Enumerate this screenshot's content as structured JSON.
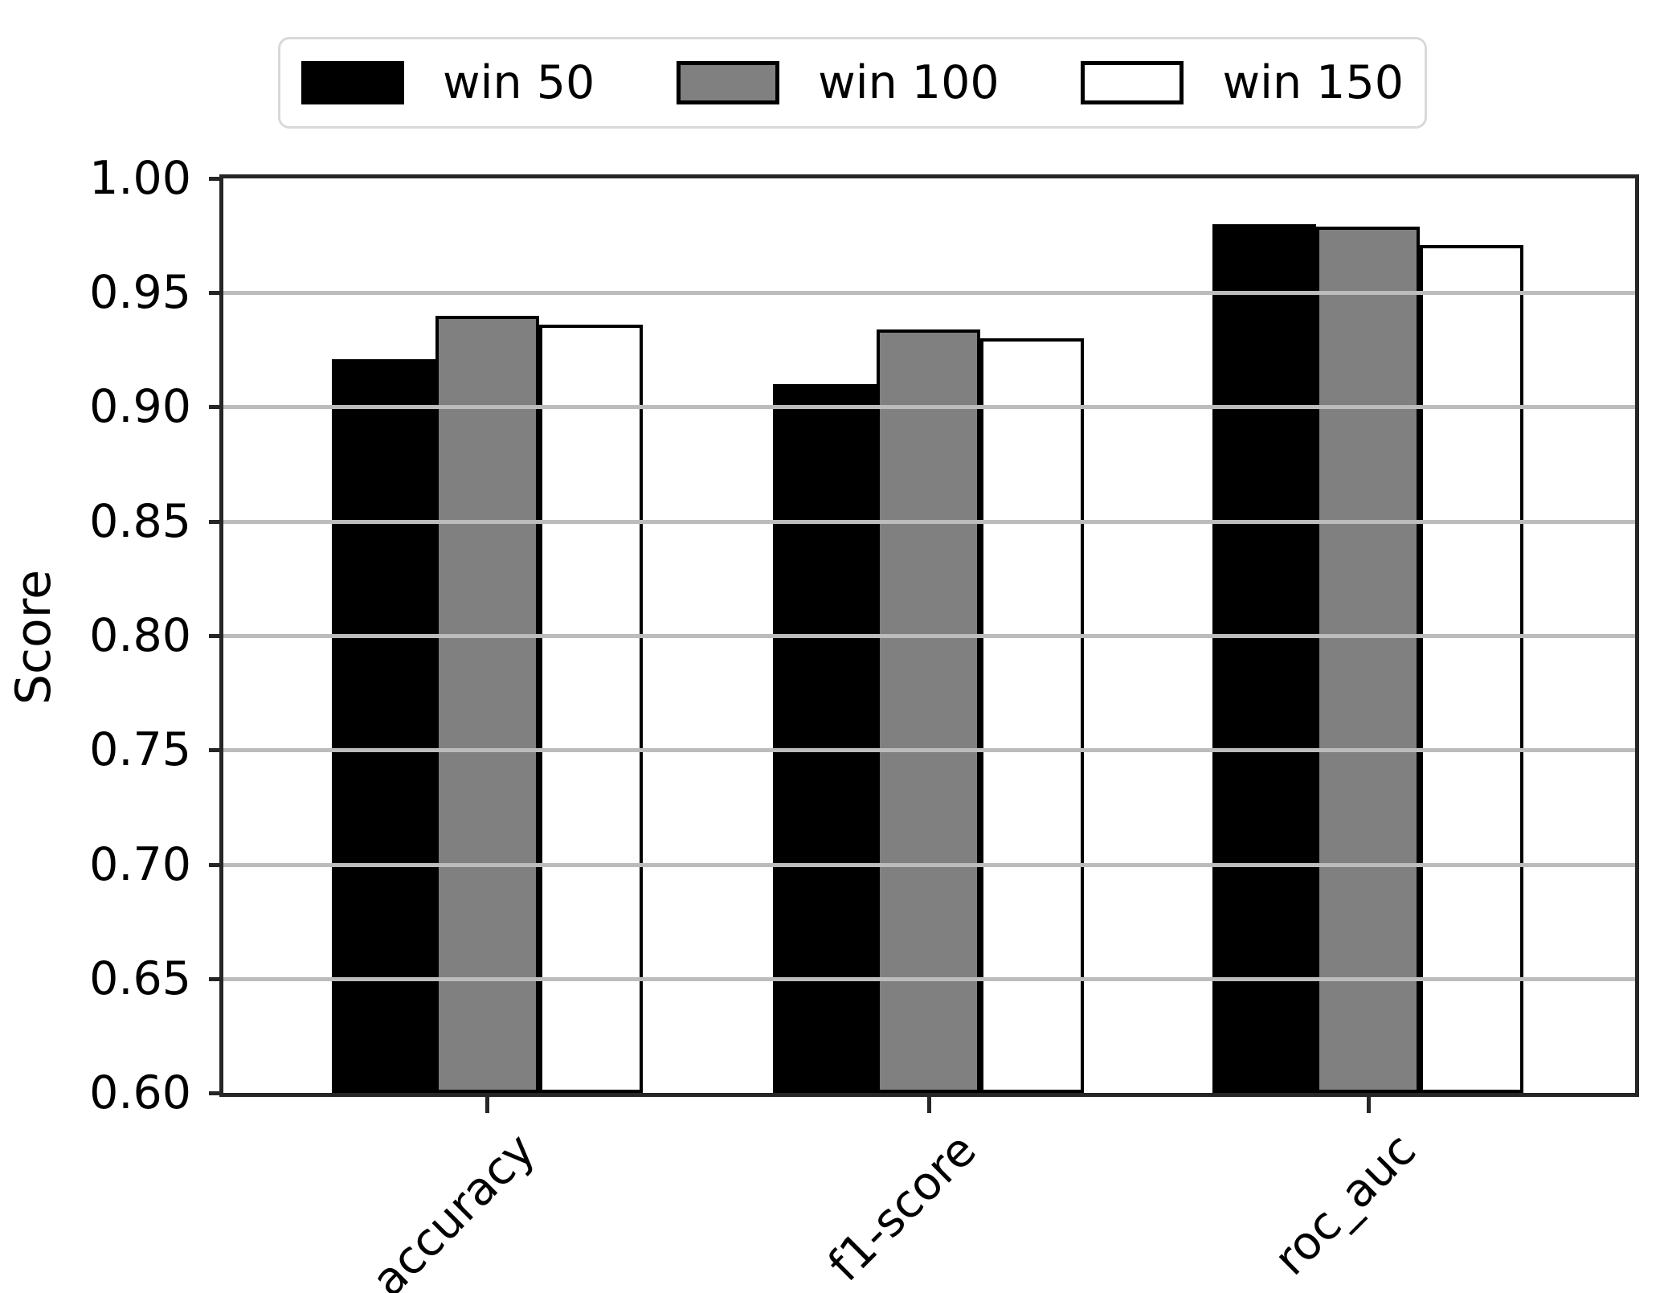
{
  "chart_data": {
    "type": "bar",
    "title": "",
    "categories": [
      "accuracy",
      "f1-score",
      "roc_auc"
    ],
    "series": [
      {
        "name": "win 50",
        "color": "#000000",
        "values": [
          0.921,
          0.91,
          0.98
        ]
      },
      {
        "name": "win 100",
        "color": "#808080",
        "values": [
          0.94,
          0.934,
          0.979
        ]
      },
      {
        "name": "win 150",
        "color": "#ffffff",
        "values": [
          0.936,
          0.93,
          0.971
        ]
      }
    ],
    "xlabel": "",
    "ylabel": "Score",
    "ylim": [
      0.6,
      1.0
    ],
    "yticks": [
      1.0,
      0.95,
      0.9,
      0.85,
      0.8,
      0.75,
      0.7,
      0.65,
      0.6
    ],
    "ytick_labels": [
      "1.00",
      "0.95",
      "0.90",
      "0.85",
      "0.80",
      "0.75",
      "0.70",
      "0.65",
      "0.60"
    ],
    "grid": true,
    "grid_axis": "y",
    "grid_above_bars": true,
    "legend_position": "top",
    "bar_edge_color": "#000000",
    "gridline_color": "#bcbcbc",
    "spine_color": "#262626",
    "text_color": "#000000"
  }
}
